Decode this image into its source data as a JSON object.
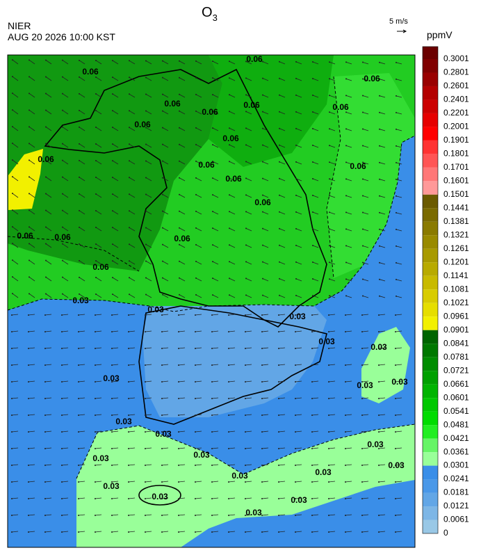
{
  "title": "O",
  "title_subscript": "3",
  "agency": "NIER",
  "timestamp": "AUG 20 2026 10:00 KST",
  "wind_scale": "5 m/s",
  "colorbar": {
    "unit": "ppmV",
    "labels": [
      "0.3001",
      "0.2801",
      "0.2601",
      "0.2401",
      "0.2201",
      "0.2001",
      "0.1901",
      "0.1801",
      "0.1701",
      "0.1601",
      "0.1501",
      "0.1441",
      "0.1381",
      "0.1321",
      "0.1261",
      "0.1201",
      "0.1141",
      "0.1081",
      "0.1021",
      "0.0961",
      "0.0901",
      "0.0841",
      "0.0781",
      "0.0721",
      "0.0661",
      "0.0601",
      "0.0541",
      "0.0481",
      "0.0421",
      "0.0361",
      "0.0301",
      "0.0241",
      "0.0181",
      "0.0121",
      "0.0061",
      "0"
    ],
    "colors": [
      "#6b0000",
      "#800000",
      "#990000",
      "#b30000",
      "#cc0000",
      "#e60000",
      "#ff0000",
      "#ff3333",
      "#ff5555",
      "#ff7777",
      "#ff9999",
      "#6b5a00",
      "#7a6a00",
      "#8a7a00",
      "#998a00",
      "#a89a00",
      "#b8aa00",
      "#c8ba00",
      "#d8cc00",
      "#e6de00",
      "#f2f000",
      "#006400",
      "#007800",
      "#008c00",
      "#00a000",
      "#00b400",
      "#00c800",
      "#00dc00",
      "#22ee22",
      "#66f566",
      "#99ff99",
      "#3a8ee8",
      "#4a98e8",
      "#62a6e6",
      "#7db6e6",
      "#99c8e6"
    ]
  },
  "contour_labels": [
    "0.06",
    "0.06",
    "0.06",
    "0.06",
    "0.06",
    "0.06",
    "0.06",
    "0.06",
    "0.06",
    "0.06",
    "0.06",
    "0.06",
    "0.06",
    "0.06",
    "0.06",
    "0.06",
    "0.06",
    "0.06",
    "0.03",
    "0.03",
    "0.03",
    "0.03",
    "0.03",
    "0.03",
    "0.03",
    "0.03",
    "0.03",
    "0.03",
    "0.03",
    "0.03",
    "0.03",
    "0.03",
    "0.03",
    "0.03",
    "0.03",
    "0.03",
    "0.03",
    "0.03"
  ]
}
